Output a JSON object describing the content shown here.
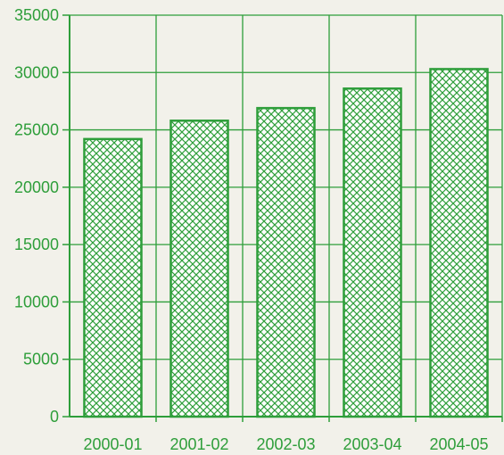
{
  "chart_data": {
    "type": "bar",
    "categories": [
      "2000-01",
      "2001-02",
      "2002-03",
      "2003-04",
      "2004-05"
    ],
    "values": [
      24200,
      25800,
      26900,
      28600,
      30300
    ],
    "ylim": [
      0,
      35000
    ],
    "yticks": [
      0,
      5000,
      10000,
      15000,
      20000,
      25000,
      30000,
      35000
    ],
    "grid": true,
    "legend": "none",
    "bar_pattern": "crosshatch"
  },
  "colors": {
    "accent": "#2e9e3a",
    "background": "#f2f1ea"
  }
}
